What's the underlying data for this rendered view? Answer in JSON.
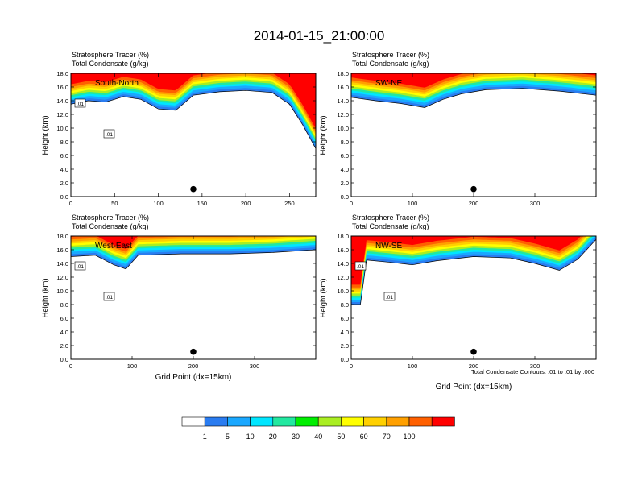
{
  "title": "2014-01-15_21:00:00",
  "colorbar": {
    "labels": [
      "1",
      "5",
      "10",
      "20",
      "30",
      "40",
      "50",
      "60",
      "70",
      "100"
    ],
    "colors": [
      "#ffffff",
      "#2a7cf0",
      "#1aa8ff",
      "#00e6ff",
      "#22e8a0",
      "#00ee00",
      "#aaee22",
      "#ffff00",
      "#ffd000",
      "#ffa000",
      "#ff6000",
      "#ff0000"
    ]
  },
  "xlabel": "Grid Point (dx=15km)",
  "footnote": "Total Condensate Contours: .01 to .01 by .000",
  "chart_data": [
    {
      "type": "heatmap",
      "subtitle_line1": "Stratosphere Tracer   (%)",
      "subtitle_line2": "Total Condensate   (g/kg)",
      "inset_label": "South-North",
      "ylabel": "Height (km)",
      "xlabel": "",
      "xlim": [
        0,
        280
      ],
      "ylim": [
        0,
        18
      ],
      "xticks": [
        "0",
        "50",
        "100",
        "150",
        "200",
        "250"
      ],
      "xtick_values": [
        0,
        50,
        100,
        150,
        200,
        250
      ],
      "yticks": [
        "0.0",
        "2.0",
        "4.0",
        "6.0",
        "8.0",
        "10.0",
        "12.0",
        "14.0",
        "16.0",
        "18.0"
      ],
      "ytick_values": [
        0,
        2,
        4,
        6,
        8,
        10,
        12,
        14,
        16,
        18
      ],
      "contour_labels": [
        ".01",
        ".01"
      ],
      "tropopause_km": [
        [
          0,
          13.5
        ],
        [
          20,
          14.0
        ],
        [
          40,
          13.8
        ],
        [
          60,
          14.6
        ],
        [
          80,
          14.2
        ],
        [
          100,
          12.8
        ],
        [
          120,
          12.6
        ],
        [
          140,
          14.8
        ],
        [
          170,
          15.3
        ],
        [
          200,
          15.5
        ],
        [
          230,
          15.2
        ],
        [
          250,
          13.5
        ],
        [
          265,
          10.5
        ],
        [
          280,
          7.0
        ]
      ],
      "marker": {
        "x": 140,
        "y": 1.1
      }
    },
    {
      "type": "heatmap",
      "subtitle_line1": "Stratosphere Tracer   (%)",
      "subtitle_line2": "Total Condensate   (g/kg)",
      "inset_label": "SW-NE",
      "ylabel": "Height (km)",
      "xlabel": "",
      "xlim": [
        0,
        400
      ],
      "ylim": [
        0,
        18
      ],
      "xticks": [
        "0",
        "100",
        "200",
        "300"
      ],
      "xtick_values": [
        0,
        100,
        200,
        300
      ],
      "yticks": [
        "0.0",
        "2.0",
        "4.0",
        "6.0",
        "8.0",
        "10.0",
        "12.0",
        "14.0",
        "16.0",
        "18.0"
      ],
      "ytick_values": [
        0,
        2,
        4,
        6,
        8,
        10,
        12,
        14,
        16,
        18
      ],
      "contour_labels": [],
      "tropopause_km": [
        [
          0,
          14.5
        ],
        [
          40,
          14.0
        ],
        [
          80,
          13.6
        ],
        [
          120,
          13.0
        ],
        [
          150,
          14.2
        ],
        [
          180,
          15.0
        ],
        [
          220,
          15.6
        ],
        [
          280,
          15.8
        ],
        [
          340,
          15.4
        ],
        [
          400,
          14.8
        ]
      ],
      "marker": {
        "x": 200,
        "y": 1.1
      }
    },
    {
      "type": "heatmap",
      "subtitle_line1": "Stratosphere Tracer   (%)",
      "subtitle_line2": "Total Condensate   (g/kg)",
      "inset_label": "West-East",
      "ylabel": "Height (km)",
      "xlabel": "Grid Point (dx=15km)",
      "xlim": [
        0,
        400
      ],
      "ylim": [
        0,
        18
      ],
      "xticks": [
        "0",
        "100",
        "200",
        "300"
      ],
      "xtick_values": [
        0,
        100,
        200,
        300
      ],
      "yticks": [
        "0.0",
        "2.0",
        "4.0",
        "6.0",
        "8.0",
        "10.0",
        "12.0",
        "14.0",
        "16.0",
        "18.0"
      ],
      "ytick_values": [
        0,
        2,
        4,
        6,
        8,
        10,
        12,
        14,
        16,
        18
      ],
      "contour_labels": [
        ".01",
        ".01"
      ],
      "tropopause_km": [
        [
          0,
          15.0
        ],
        [
          40,
          15.2
        ],
        [
          70,
          13.8
        ],
        [
          90,
          13.2
        ],
        [
          110,
          15.2
        ],
        [
          180,
          15.4
        ],
        [
          260,
          15.4
        ],
        [
          330,
          15.6
        ],
        [
          400,
          16.0
        ]
      ],
      "marker": {
        "x": 200,
        "y": 1.1
      }
    },
    {
      "type": "heatmap",
      "subtitle_line1": "Stratosphere Tracer   (%)",
      "subtitle_line2": "Total Condensate   (g/kg)",
      "inset_label": "NW-SE",
      "ylabel": "Height (km)",
      "xlabel": "Grid Point (dx=15km)",
      "xlim": [
        0,
        400
      ],
      "ylim": [
        0,
        18
      ],
      "xticks": [
        "0",
        "100",
        "200",
        "300"
      ],
      "xtick_values": [
        0,
        100,
        200,
        300
      ],
      "yticks": [
        "0.0",
        "2.0",
        "4.0",
        "6.0",
        "8.0",
        "10.0",
        "12.0",
        "14.0",
        "16.0",
        "18.0"
      ],
      "ytick_values": [
        0,
        2,
        4,
        6,
        8,
        10,
        12,
        14,
        16,
        18
      ],
      "contour_labels": [
        ".01",
        ".01"
      ],
      "tropopause_km": [
        [
          0,
          8.0
        ],
        [
          15,
          8.0
        ],
        [
          25,
          14.5
        ],
        [
          60,
          14.2
        ],
        [
          100,
          13.8
        ],
        [
          140,
          14.4
        ],
        [
          200,
          15.0
        ],
        [
          260,
          14.8
        ],
        [
          300,
          14.0
        ],
        [
          340,
          13.0
        ],
        [
          370,
          14.6
        ],
        [
          400,
          17.5
        ]
      ],
      "marker": {
        "x": 200,
        "y": 1.1
      }
    }
  ]
}
